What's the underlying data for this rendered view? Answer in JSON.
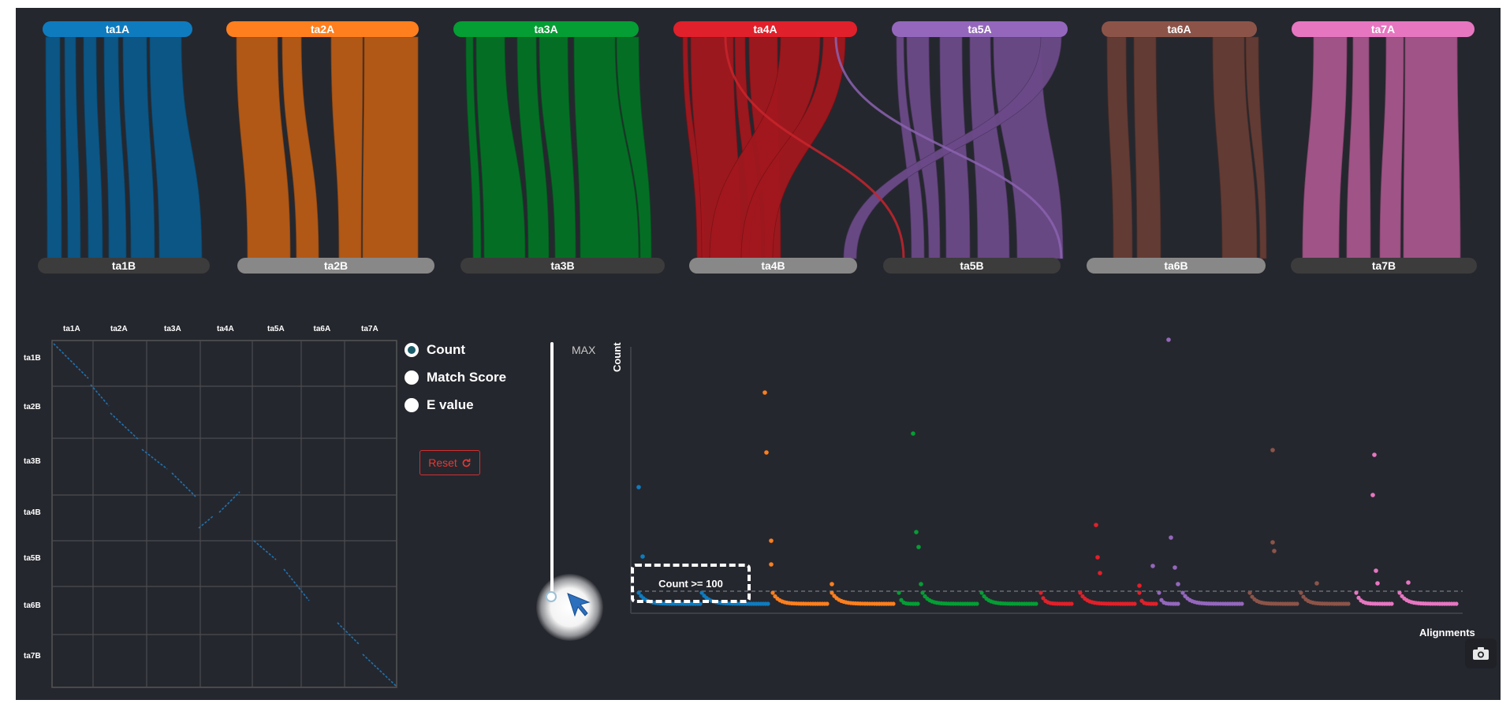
{
  "top_labels": [
    "ta1A",
    "ta2A",
    "ta3A",
    "ta4A",
    "ta5A",
    "ta6A",
    "ta7A"
  ],
  "bottom_labels": [
    "ta1B",
    "ta2B",
    "ta3B",
    "ta4B",
    "ta5B",
    "ta6B",
    "ta7B"
  ],
  "colors": {
    "ta1": "#0f7bbf",
    "ta2": "#ff7f1e",
    "ta3": "#049e34",
    "ta4": "#e0202a",
    "ta5": "#9467bd",
    "ta6": "#8c5449",
    "ta7": "#e776c1",
    "bottom_dark": "#3c3c3c",
    "bottom_light": "#888888",
    "background": "#25272e"
  },
  "matrix": {
    "col_labels": [
      "ta1A",
      "ta2A",
      "ta3A",
      "ta4A",
      "ta5A",
      "ta6A",
      "ta7A"
    ],
    "row_labels": [
      "ta1B",
      "ta2B",
      "ta3B",
      "ta4B",
      "ta5B",
      "ta6B",
      "ta7B"
    ]
  },
  "controls": {
    "options": [
      "Count",
      "Match Score",
      "E value"
    ],
    "selected": "Count",
    "reset_label": "Reset",
    "slider_max_label": "MAX",
    "slider_position_fraction": 0.03
  },
  "tooltip_text": "Count >= 100",
  "scatter": {
    "y_label": "Count",
    "x_label": "Alignments",
    "threshold_label": "Count >= 100"
  },
  "icons": [
    "radio-icon",
    "refresh-icon",
    "camera-icon",
    "cursor-arrow-icon"
  ]
}
